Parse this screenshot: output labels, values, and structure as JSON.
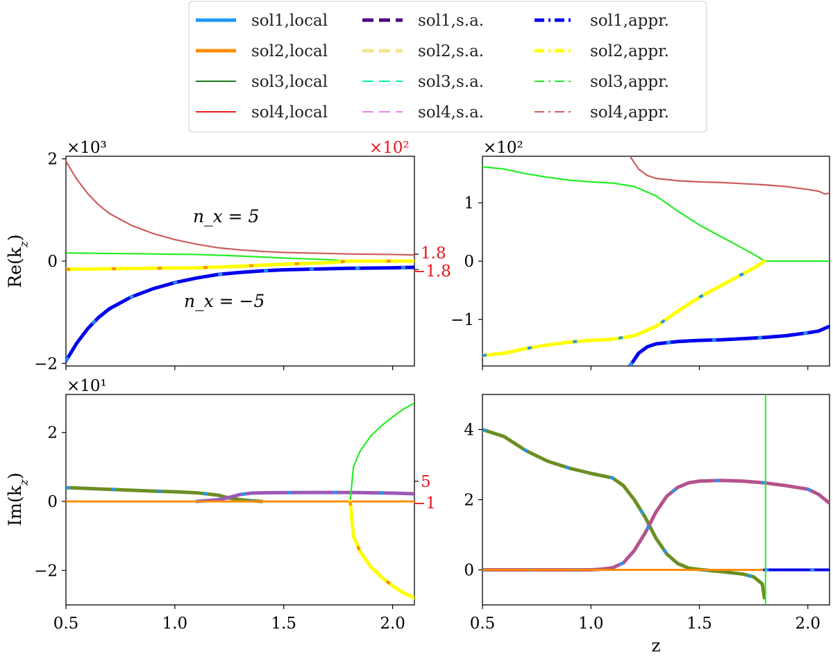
{
  "legend": {
    "columns": [
      [
        {
          "label": "sol1,local",
          "color": "#2196f3",
          "dash": "solid",
          "width": 5
        },
        {
          "label": "sol2,local",
          "color": "#ff8c00",
          "dash": "solid",
          "width": 5
        },
        {
          "label": "sol3,local",
          "color": "#1f7a1f",
          "dash": "solid",
          "width": 2
        },
        {
          "label": "sol4,local",
          "color": "#ee1c1c",
          "dash": "solid",
          "width": 2
        }
      ],
      [
        {
          "label": "sol1,s.a.",
          "color": "#4b0082",
          "dash": "dashed",
          "width": 5
        },
        {
          "label": "sol2,s.a.",
          "color": "#f0e68c",
          "dash": "dashed",
          "width": 5
        },
        {
          "label": "sol3,s.a.",
          "color": "#00fa9a",
          "dash": "dashed",
          "width": 2
        },
        {
          "label": "sol4,s.a.",
          "color": "#ee82ee",
          "dash": "dashed",
          "width": 2
        }
      ],
      [
        {
          "label": "sol1,appr.",
          "color": "#0000ee",
          "dash": "dashdot",
          "width": 5
        },
        {
          "label": "sol2,appr.",
          "color": "#ffff00",
          "dash": "dashdot",
          "width": 5
        },
        {
          "label": "sol3,appr.",
          "color": "#22ee22",
          "dash": "dashdot",
          "width": 2
        },
        {
          "label": "sol4,appr.",
          "color": "#cd5c5c",
          "dash": "dashdot",
          "width": 2
        }
      ]
    ]
  },
  "chart_data": [
    {
      "panel": "top-left",
      "type": "line",
      "ylabel": "Re(k_z)",
      "annotations": [
        "n_x = 5",
        "n_x = −5"
      ],
      "xlim": [
        0.5,
        2.1
      ],
      "ylim": [
        -2.05,
        2.05
      ],
      "scale_label": "×10³",
      "secondary_scale_label": "×10²",
      "secondary_ticks": [
        "1.8",
        "−1.8"
      ],
      "xticks": [
        0.5,
        1.0,
        1.5,
        2.0
      ],
      "yticks": [
        -2,
        0,
        2
      ],
      "ytick_labels": [
        "−2",
        "0",
        "2"
      ],
      "series": [
        {
          "name": "sol4",
          "color": "#cd5c5c",
          "width": 2.2,
          "x": [
            0.5,
            0.55,
            0.6,
            0.65,
            0.7,
            0.8,
            0.9,
            1.0,
            1.1,
            1.2,
            1.3,
            1.4,
            1.5,
            1.6,
            1.7,
            1.8,
            1.9,
            2.0,
            2.1
          ],
          "y": [
            1.95,
            1.6,
            1.32,
            1.1,
            0.93,
            0.7,
            0.54,
            0.42,
            0.33,
            0.26,
            0.22,
            0.19,
            0.17,
            0.16,
            0.15,
            0.14,
            0.135,
            0.13,
            0.12
          ]
        },
        {
          "name": "sol3",
          "color": "#22ee22",
          "width": 2.2,
          "x": [
            0.5,
            0.7,
            0.9,
            1.1,
            1.3,
            1.5,
            1.7,
            1.8,
            1.9,
            2.0,
            2.1
          ],
          "y": [
            0.16,
            0.15,
            0.14,
            0.13,
            0.1,
            0.06,
            0.03,
            0.0,
            0.0,
            0.0,
            0.0
          ]
        },
        {
          "name": "sol2",
          "color": "#ffff00",
          "width": 5,
          "x": [
            0.5,
            0.7,
            0.9,
            1.1,
            1.3,
            1.5,
            1.7,
            1.8,
            1.9,
            2.0,
            2.1
          ],
          "y": [
            -0.16,
            -0.15,
            -0.14,
            -0.13,
            -0.1,
            -0.06,
            -0.03,
            0.0,
            0.0,
            0.0,
            0.0
          ]
        },
        {
          "name": "sol1",
          "color": "#0000ee",
          "width": 5,
          "x": [
            0.5,
            0.55,
            0.6,
            0.65,
            0.7,
            0.8,
            0.9,
            1.0,
            1.1,
            1.2,
            1.3,
            1.4,
            1.5,
            1.6,
            1.7,
            1.8,
            1.9,
            2.0,
            2.1
          ],
          "y": [
            -1.95,
            -1.6,
            -1.32,
            -1.1,
            -0.93,
            -0.7,
            -0.54,
            -0.42,
            -0.33,
            -0.26,
            -0.22,
            -0.19,
            -0.17,
            -0.16,
            -0.15,
            -0.14,
            -0.135,
            -0.13,
            -0.12
          ]
        }
      ]
    },
    {
      "panel": "top-right",
      "type": "line",
      "ylabel": "",
      "xlim": [
        0.5,
        2.1
      ],
      "ylim": [
        -1.8,
        1.8
      ],
      "scale_label": "×10²",
      "xticks": [
        0.5,
        1.0,
        1.5,
        2.0
      ],
      "yticks": [
        -1,
        0,
        1
      ],
      "ytick_labels": [
        "−1",
        "0",
        "1"
      ],
      "series": [
        {
          "name": "sol4",
          "color": "#cd5c5c",
          "width": 2.2,
          "x": [
            1.18,
            1.22,
            1.26,
            1.3,
            1.4,
            1.5,
            1.6,
            1.7,
            1.8,
            1.9,
            2.0,
            2.05,
            2.08,
            2.1
          ],
          "y": [
            1.8,
            1.58,
            1.47,
            1.42,
            1.38,
            1.36,
            1.35,
            1.33,
            1.31,
            1.28,
            1.23,
            1.2,
            1.15,
            1.17
          ]
        },
        {
          "name": "sol3",
          "color": "#22ee22",
          "width": 2.2,
          "x": [
            0.5,
            0.6,
            0.7,
            0.8,
            0.9,
            1.0,
            1.1,
            1.2,
            1.3,
            1.4,
            1.5,
            1.6,
            1.7,
            1.75,
            1.78,
            1.8,
            1.9,
            2.0,
            2.1
          ],
          "y": [
            1.62,
            1.58,
            1.5,
            1.44,
            1.39,
            1.36,
            1.34,
            1.28,
            1.12,
            0.86,
            0.62,
            0.42,
            0.22,
            0.12,
            0.05,
            0.0,
            0.0,
            0.0,
            0.0
          ]
        },
        {
          "name": "sol2",
          "color": "#ffff00",
          "width": 5,
          "x": [
            0.5,
            0.6,
            0.7,
            0.8,
            0.9,
            1.0,
            1.1,
            1.2,
            1.3,
            1.4,
            1.5,
            1.6,
            1.7,
            1.75,
            1.78,
            1.8
          ],
          "y": [
            -1.62,
            -1.58,
            -1.5,
            -1.44,
            -1.39,
            -1.36,
            -1.34,
            -1.28,
            -1.12,
            -0.86,
            -0.62,
            -0.42,
            -0.22,
            -0.12,
            -0.05,
            0.0
          ]
        },
        {
          "name": "sol1",
          "color": "#0000ee",
          "width": 5,
          "x": [
            1.18,
            1.22,
            1.26,
            1.3,
            1.4,
            1.5,
            1.6,
            1.7,
            1.8,
            1.9,
            2.0,
            2.05,
            2.08,
            2.1
          ],
          "y": [
            -1.8,
            -1.58,
            -1.47,
            -1.42,
            -1.38,
            -1.36,
            -1.35,
            -1.33,
            -1.31,
            -1.28,
            -1.23,
            -1.2,
            -1.15,
            -1.12
          ]
        }
      ]
    },
    {
      "panel": "bottom-left",
      "type": "line",
      "ylabel": "Im(k_z)",
      "xlim": [
        0.5,
        2.1
      ],
      "ylim": [
        -3.0,
        3.1
      ],
      "scale_label": "×10¹",
      "secondary_ticks": [
        "5",
        "−1"
      ],
      "xticks": [
        0.5,
        1.0,
        1.5,
        2.0
      ],
      "xtick_labels": [
        "0.5",
        "1.0",
        "1.5",
        "2.0"
      ],
      "yticks": [
        -2,
        0,
        2
      ],
      "ytick_labels": [
        "−2",
        "0",
        "2"
      ],
      "series": [
        {
          "name": "sol3",
          "color": "#6b8e23",
          "width": 5,
          "x": [
            0.5,
            0.7,
            0.9,
            1.0,
            1.1,
            1.2,
            1.25,
            1.3,
            1.35,
            1.4
          ],
          "y": [
            0.4,
            0.35,
            0.3,
            0.28,
            0.25,
            0.18,
            0.1,
            0.05,
            0.02,
            0.0
          ]
        },
        {
          "name": "sol4",
          "color": "#9b59b6",
          "width": 5,
          "x": [
            1.1,
            1.2,
            1.25,
            1.3,
            1.35,
            1.4,
            1.6,
            1.8,
            2.0,
            2.1
          ],
          "y": [
            0.0,
            0.05,
            0.12,
            0.2,
            0.24,
            0.25,
            0.26,
            0.26,
            0.24,
            0.22
          ]
        },
        {
          "name": "sol1/sol2 zero",
          "color": "#ff8c00",
          "width": 3,
          "x": [
            0.5,
            1.0,
            1.5,
            2.0,
            2.1
          ],
          "y": [
            0,
            0,
            0,
            0,
            0
          ]
        },
        {
          "name": "sol3,appr.",
          "color": "#22ee22",
          "width": 2.2,
          "x": [
            1.805,
            1.82,
            1.85,
            1.9,
            1.95,
            2.0,
            2.05,
            2.1
          ],
          "y": [
            0.0,
            1.0,
            1.45,
            1.9,
            2.2,
            2.45,
            2.68,
            2.85
          ]
        },
        {
          "name": "sol2,appr.",
          "color": "#ffff00",
          "width": 5,
          "x": [
            1.805,
            1.82,
            1.85,
            1.9,
            1.95,
            2.0,
            2.05,
            2.1
          ],
          "y": [
            0.0,
            -1.0,
            -1.45,
            -1.9,
            -2.2,
            -2.45,
            -2.65,
            -2.8
          ]
        }
      ]
    },
    {
      "panel": "bottom-right",
      "type": "line",
      "ylabel": "",
      "xlabel": "z",
      "xlim": [
        0.5,
        2.1
      ],
      "ylim": [
        -1.0,
        5.0
      ],
      "xticks": [
        0.5,
        1.0,
        1.5,
        2.0
      ],
      "xtick_labels": [
        "0.5",
        "1.0",
        "1.5",
        "2.0"
      ],
      "yticks": [
        0,
        2,
        4
      ],
      "ytick_labels": [
        "0",
        "2",
        "4"
      ],
      "series": [
        {
          "name": "sol3",
          "color": "#6b8e23",
          "width": 5,
          "x": [
            0.5,
            0.6,
            0.7,
            0.8,
            0.9,
            1.0,
            1.1,
            1.15,
            1.2,
            1.25,
            1.3,
            1.35,
            1.4,
            1.45,
            1.5,
            1.6,
            1.7,
            1.75,
            1.79,
            1.8
          ],
          "y": [
            4.0,
            3.8,
            3.4,
            3.1,
            2.9,
            2.75,
            2.62,
            2.4,
            2.0,
            1.5,
            0.9,
            0.45,
            0.18,
            0.05,
            0.01,
            -0.05,
            -0.12,
            -0.2,
            -0.4,
            -0.8
          ]
        },
        {
          "name": "sol4",
          "color": "#b5528c",
          "width": 5,
          "x": [
            0.5,
            1.0,
            1.05,
            1.1,
            1.15,
            1.2,
            1.25,
            1.3,
            1.35,
            1.4,
            1.45,
            1.5,
            1.6,
            1.7,
            1.8,
            1.9,
            2.0,
            2.05,
            2.08,
            2.1
          ],
          "y": [
            0.0,
            0.0,
            0.02,
            0.06,
            0.2,
            0.55,
            1.05,
            1.65,
            2.1,
            2.35,
            2.48,
            2.53,
            2.55,
            2.53,
            2.48,
            2.4,
            2.3,
            2.15,
            2.0,
            1.9
          ]
        },
        {
          "name": "sol1/sol2 zero",
          "color": "#ff8c00",
          "width": 3,
          "x": [
            0.5,
            1.0,
            1.5,
            1.8
          ],
          "y": [
            0,
            0,
            0,
            0
          ]
        },
        {
          "name": "sol1,appr.",
          "color": "#0000ee",
          "width": 4,
          "x": [
            1.8,
            1.9,
            2.0,
            2.1
          ],
          "y": [
            0,
            0,
            0,
            0
          ]
        },
        {
          "name": "sol3,appr.",
          "color": "#22ee22",
          "width": 2,
          "x": [
            1.805,
            1.805
          ],
          "y": [
            5.0,
            -1.0
          ]
        }
      ]
    }
  ]
}
